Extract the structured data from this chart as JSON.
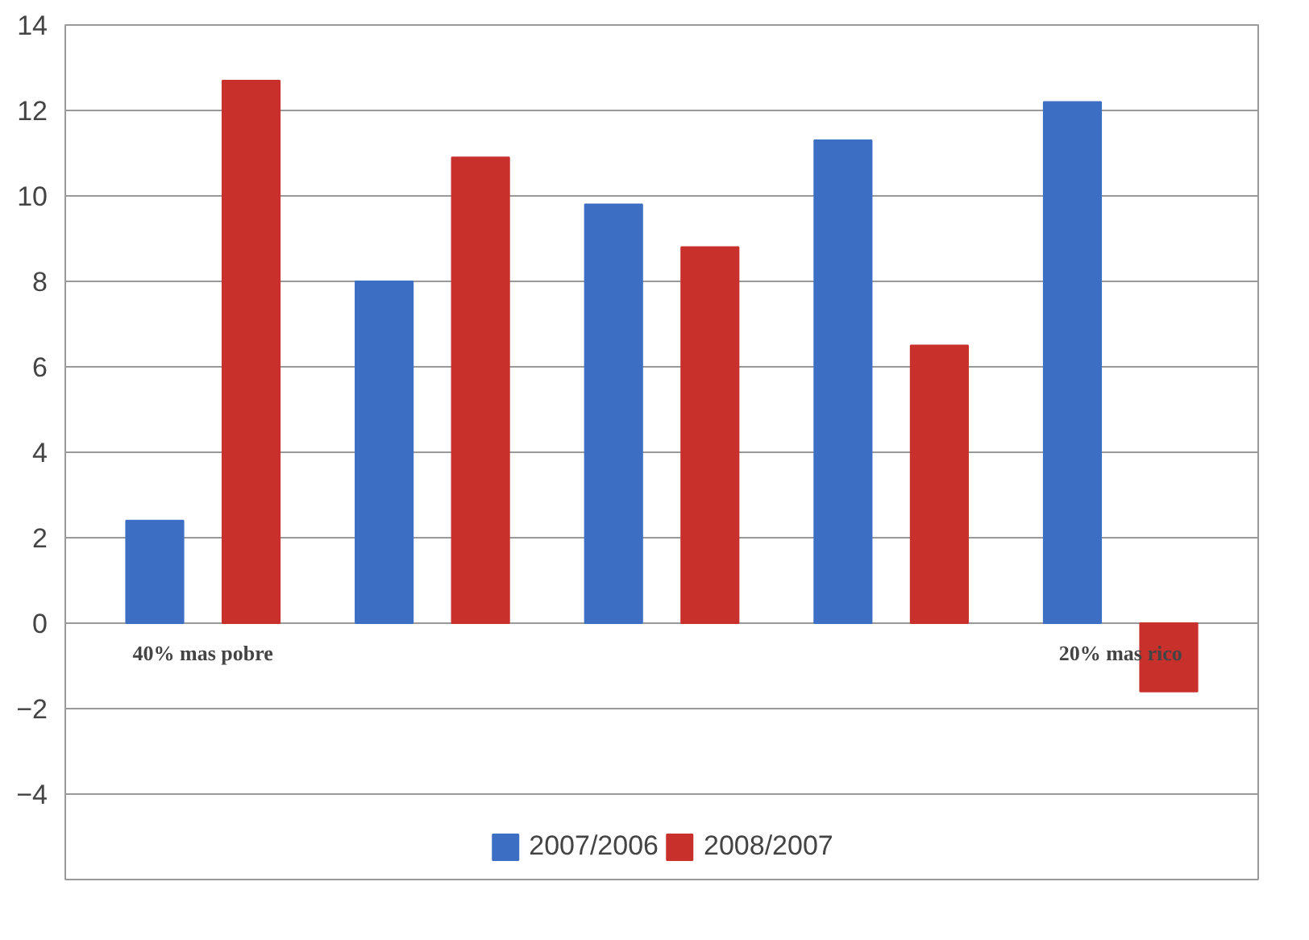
{
  "chart_data": {
    "type": "bar",
    "categories": [
      "40% mas pobre",
      null,
      null,
      null,
      "20% mas rico"
    ],
    "series": [
      {
        "name": "2007/2006",
        "color": "#3c6fc4",
        "values": [
          2.4,
          8.0,
          9.8,
          11.3,
          12.2
        ]
      },
      {
        "name": "2008/2007",
        "color": "#c8302c",
        "values": [
          12.7,
          10.9,
          8.8,
          6.5,
          -1.6
        ]
      }
    ],
    "ylim": [
      -6,
      14
    ],
    "yticks": [
      -4,
      -2,
      0,
      2,
      4,
      6,
      8,
      10,
      12,
      14
    ],
    "grid": "y",
    "legend": "bottom"
  }
}
